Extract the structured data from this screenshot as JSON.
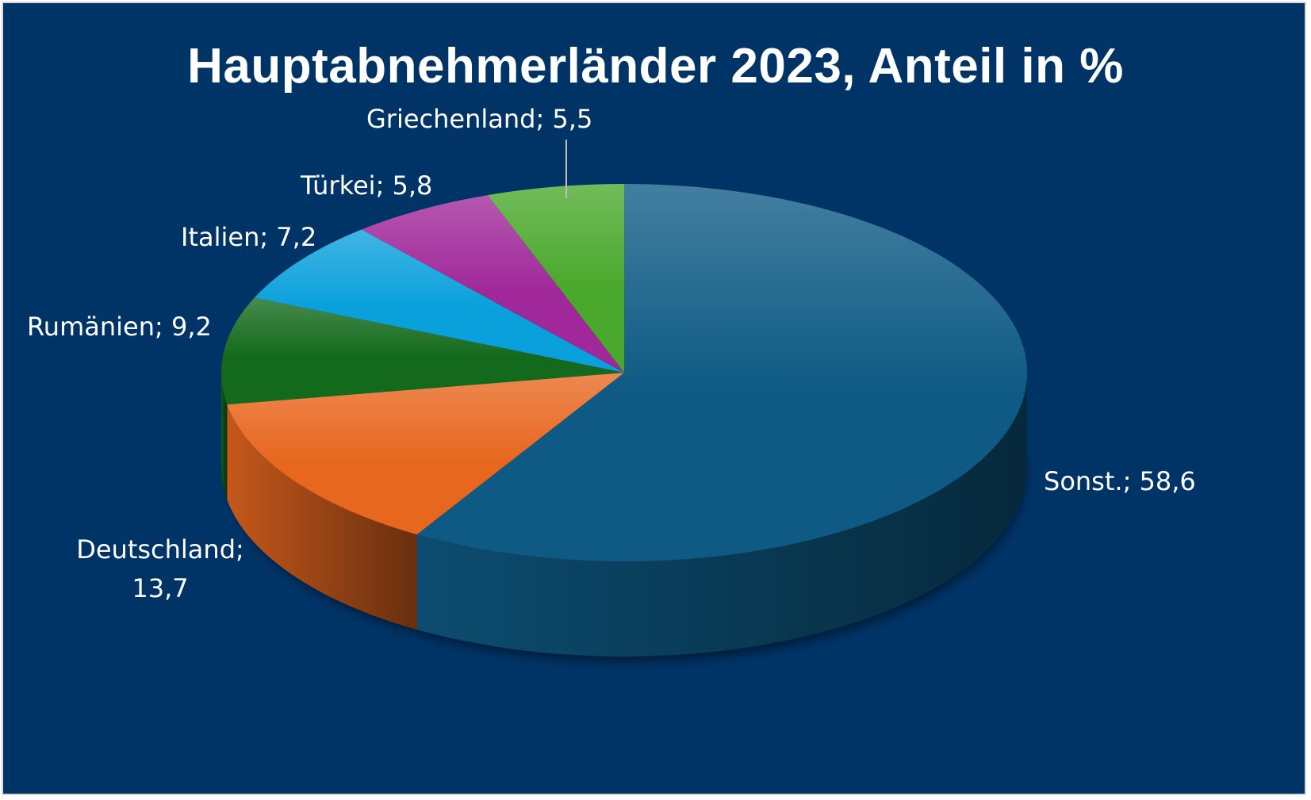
{
  "chart_data": {
    "type": "pie",
    "title": "Hauptabnehmerländer 2023, Anteil in %",
    "categories": [
      "Sonst.",
      "Deutschland",
      "Rumänien",
      "Italien",
      "Türkei",
      "Griechenland"
    ],
    "values": [
      58.6,
      13.7,
      9.2,
      7.2,
      5.8,
      5.5
    ],
    "labels": [
      "Sonst.; 58,6",
      "Deutschland; 13,7",
      "Rumänien; 9,2",
      "Italien; 7,2",
      "Türkei; 5,8",
      "Griechenland; 5,5"
    ],
    "colors": [
      "#0e5a84",
      "#e8671f",
      "#146a1c",
      "#0aa0dc",
      "#a0289a",
      "#4aa82c"
    ],
    "background": "#003366",
    "legend": "none"
  }
}
